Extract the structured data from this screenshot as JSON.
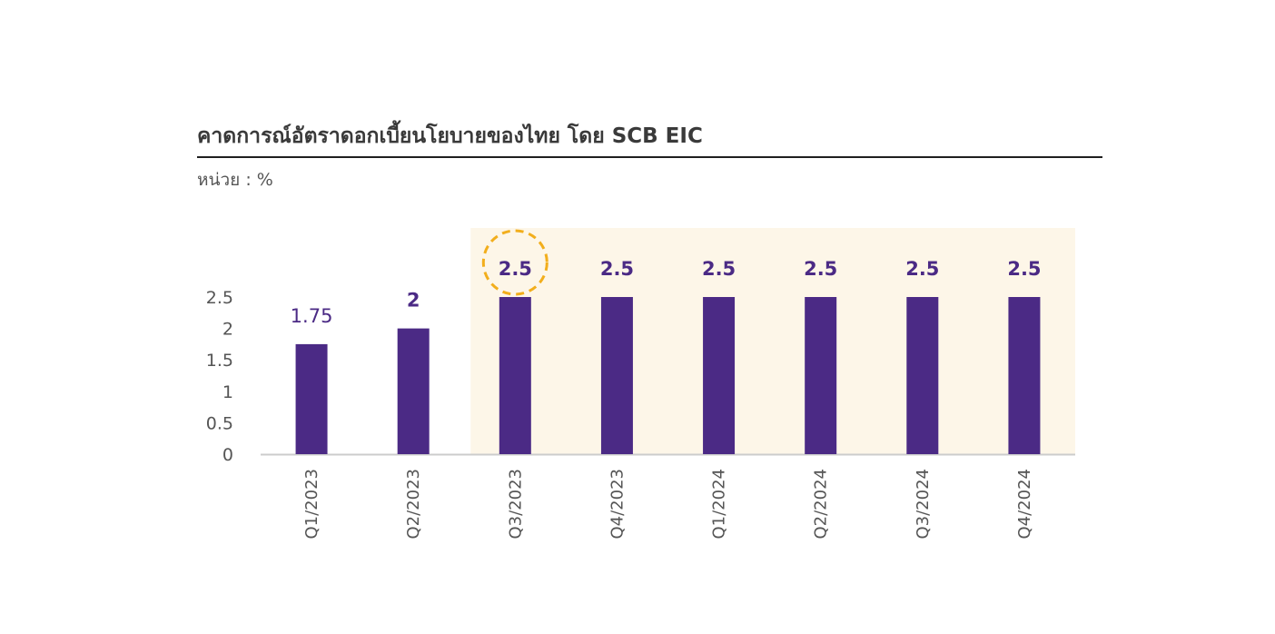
{
  "header": {
    "title": "คาดการณ์อัตราดอกเบี้ยนโยบายของไทย โดย SCB EIC",
    "unit_label": "หน่วย : %"
  },
  "colors": {
    "bar": "#4b2a85",
    "value_label": "#4b2a85",
    "forecast_highlight": "#fdf6e8",
    "circle_highlight": "#f2ae1c",
    "axis": "#cccccc",
    "tick_text": "#555555"
  },
  "chart_data": {
    "type": "bar",
    "categories": [
      "Q1/2023",
      "Q2/2023",
      "Q3/2023",
      "Q4/2023",
      "Q1/2024",
      "Q2/2024",
      "Q3/2024",
      "Q4/2024"
    ],
    "values": [
      1.75,
      2,
      2.5,
      2.5,
      2.5,
      2.5,
      2.5,
      2.5
    ],
    "value_labels": [
      "1.75",
      "2",
      "2.5",
      "2.5",
      "2.5",
      "2.5",
      "2.5",
      "2.5"
    ],
    "bold_value_labels": [
      false,
      true,
      true,
      true,
      true,
      true,
      true,
      true
    ],
    "yticks": [
      "0",
      "0.5",
      "1",
      "1.5",
      "2",
      "2.5"
    ],
    "ylim": [
      0,
      2.5
    ],
    "forecast_start_index": 2,
    "circled_index": 2,
    "xlabel": "",
    "ylabel": "",
    "grid": false,
    "legend": "none"
  }
}
